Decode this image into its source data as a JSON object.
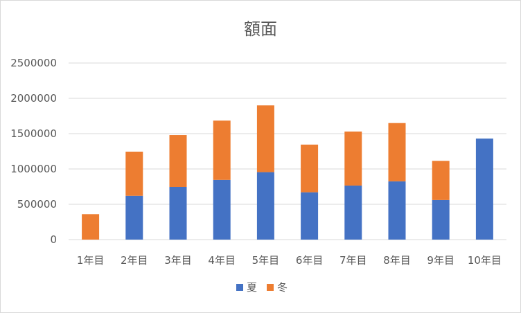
{
  "chart_data": {
    "type": "bar",
    "stacked": true,
    "title": "額面",
    "xlabel": "",
    "ylabel": "",
    "categories": [
      "1年目",
      "2年目",
      "3年目",
      "4年目",
      "5年目",
      "6年目",
      "7年目",
      "8年目",
      "9年目",
      "10年目"
    ],
    "series": [
      {
        "name": "夏",
        "color": "#4472C4",
        "values": [
          0,
          620000,
          745000,
          845000,
          955000,
          670000,
          765000,
          825000,
          560000,
          1430000
        ]
      },
      {
        "name": "冬",
        "color": "#ED7D31",
        "values": [
          360000,
          625000,
          735000,
          840000,
          945000,
          675000,
          765000,
          825000,
          555000,
          0
        ]
      }
    ],
    "ylim": [
      0,
      2500000
    ],
    "yticks": [
      "0",
      "500000",
      "1000000",
      "1500000",
      "2000000",
      "2500000"
    ],
    "grid": true,
    "legend": "bottom"
  }
}
